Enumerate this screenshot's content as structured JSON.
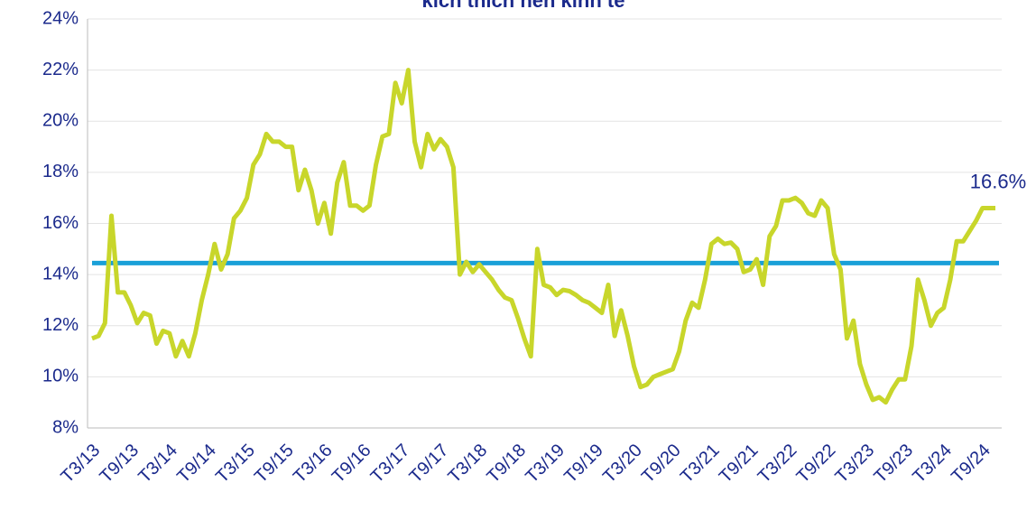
{
  "chart_data": {
    "type": "line",
    "title": "kích thích nền kinh tế",
    "categories": [
      "T3/13",
      null,
      null,
      null,
      null,
      null,
      "T9/13",
      null,
      null,
      null,
      null,
      null,
      "T3/14",
      null,
      null,
      null,
      null,
      null,
      "T9/14",
      null,
      null,
      null,
      null,
      null,
      "T3/15",
      null,
      null,
      null,
      null,
      null,
      "T9/15",
      null,
      null,
      null,
      null,
      null,
      "T3/16",
      null,
      null,
      null,
      null,
      null,
      "T9/16",
      null,
      null,
      null,
      null,
      null,
      "T3/17",
      null,
      null,
      null,
      null,
      null,
      "T9/17",
      null,
      null,
      null,
      null,
      null,
      "T3/18",
      null,
      null,
      null,
      null,
      null,
      "T9/18",
      null,
      null,
      null,
      null,
      null,
      "T3/19",
      null,
      null,
      null,
      null,
      null,
      "T9/19",
      null,
      null,
      null,
      null,
      null,
      "T3/20",
      null,
      null,
      null,
      null,
      null,
      "T9/20",
      null,
      null,
      null,
      null,
      null,
      "T3/21",
      null,
      null,
      null,
      null,
      null,
      "T9/21",
      null,
      null,
      null,
      null,
      null,
      "T3/22",
      null,
      null,
      null,
      null,
      null,
      "T9/22",
      null,
      null,
      null,
      null,
      null,
      "T3/23",
      null,
      null,
      null,
      null,
      null,
      "T9/23",
      null,
      null,
      null,
      null,
      null,
      "T3/24",
      null,
      null,
      null,
      null,
      null,
      "T9/24",
      null,
      null
    ],
    "series": [
      {
        "color": "#c8d62b",
        "values": [
          11.5,
          11.6,
          12.1,
          16.3,
          13.3,
          13.3,
          12.8,
          12.1,
          12.5,
          12.4,
          11.3,
          11.8,
          11.7,
          10.8,
          11.4,
          10.8,
          11.7,
          13.0,
          14.0,
          15.2,
          14.2,
          14.8,
          16.2,
          16.5,
          17.0,
          18.3,
          18.7,
          19.5,
          19.2,
          19.2,
          19.0,
          19.0,
          17.3,
          18.1,
          17.3,
          16.0,
          16.8,
          15.6,
          17.6,
          18.4,
          16.7,
          16.7,
          16.5,
          16.7,
          18.3,
          19.4,
          19.5,
          21.5,
          20.7,
          22.0,
          19.2,
          18.2,
          19.5,
          18.9,
          19.3,
          19.0,
          18.2,
          14.0,
          14.5,
          14.1,
          14.4,
          14.1,
          13.8,
          13.4,
          13.1,
          13.0,
          12.3,
          11.5,
          10.8,
          15.0,
          13.6,
          13.5,
          13.2,
          13.4,
          13.35,
          13.2,
          13.0,
          12.9,
          12.7,
          12.5,
          13.6,
          11.6,
          12.6,
          11.6,
          10.4,
          9.6,
          9.7,
          10.0,
          10.1,
          10.2,
          10.3,
          11.0,
          12.2,
          12.9,
          12.7,
          13.8,
          15.2,
          15.4,
          15.2,
          15.25,
          15.0,
          14.1,
          14.2,
          14.6,
          13.6,
          15.5,
          15.9,
          16.9,
          16.9,
          17.0,
          16.8,
          16.4,
          16.3,
          16.9,
          16.6,
          14.8,
          14.2,
          11.5,
          12.2,
          10.5,
          9.7,
          9.1,
          9.2,
          9.0,
          9.5,
          9.9,
          9.9,
          11.2,
          13.8,
          13.0,
          12.0,
          12.5,
          12.7,
          13.8,
          15.3,
          15.3,
          15.7,
          16.1,
          16.6,
          16.6,
          16.6
        ],
        "value_labels": [
          null,
          null,
          null,
          null,
          null,
          null,
          null,
          null,
          null,
          null,
          null,
          null,
          null,
          null,
          null,
          null,
          null,
          null,
          null,
          null,
          null,
          null,
          null,
          null,
          null,
          null,
          null,
          null,
          null,
          null,
          null,
          null,
          null,
          null,
          null,
          null,
          null,
          null,
          null,
          null,
          null,
          null,
          null,
          null,
          null,
          null,
          null,
          null,
          null,
          null,
          null,
          null,
          null,
          null,
          null,
          null,
          null,
          null,
          null,
          null,
          null,
          null,
          null,
          null,
          null,
          null,
          null,
          null,
          null,
          null,
          null,
          null,
          null,
          null,
          null,
          null,
          null,
          null,
          null,
          null,
          null,
          null,
          null,
          null,
          null,
          null,
          null,
          null,
          null,
          null,
          null,
          null,
          null,
          null,
          null,
          null,
          null,
          null,
          null,
          null,
          null,
          null,
          null,
          null,
          null,
          null,
          null,
          null,
          null,
          null,
          null,
          null,
          null,
          null,
          null,
          null,
          null,
          null,
          null,
          null,
          null,
          null,
          null,
          null,
          null,
          null,
          null,
          null,
          null,
          null,
          null,
          null,
          null,
          null,
          null,
          null,
          null,
          null,
          null,
          null,
          "16.6%"
        ]
      }
    ],
    "reference_line": 14.45,
    "reference_color": "#1aa0d8",
    "ylim": [
      8,
      24
    ],
    "yticks": [
      {
        "value": 8,
        "label": "8%"
      },
      {
        "value": 10,
        "label": "10%"
      },
      {
        "value": 12,
        "label": "12%"
      },
      {
        "value": 14,
        "label": "14%"
      },
      {
        "value": 16,
        "label": "16%"
      },
      {
        "value": 18,
        "label": "18%"
      },
      {
        "value": 20,
        "label": "20%"
      },
      {
        "value": 22,
        "label": "22%"
      },
      {
        "value": 24,
        "label": "24%"
      }
    ],
    "grid": true
  }
}
